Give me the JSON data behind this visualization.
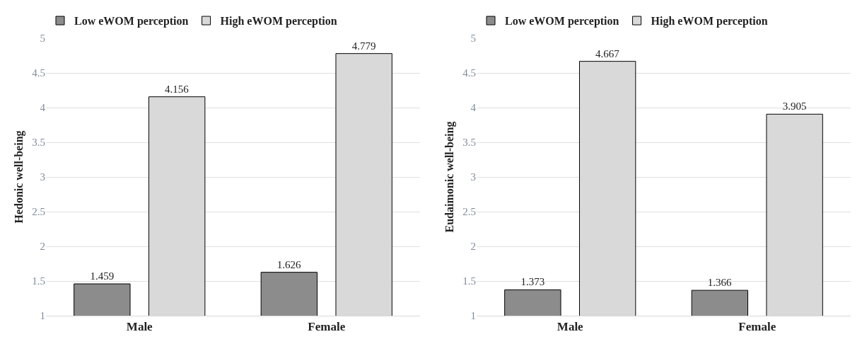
{
  "chart_data": [
    {
      "type": "bar",
      "ylabel": "Hedonic well-being",
      "categories": [
        "Male",
        "Female"
      ],
      "series": [
        {
          "name": "Low eWOM perception",
          "color": "#8c8c8c",
          "values": [
            1.459,
            1.626
          ]
        },
        {
          "name": "High eWOM perception",
          "color": "#d9d9d9",
          "values": [
            4.156,
            4.779
          ]
        }
      ],
      "ylim": [
        1,
        5
      ],
      "yticks": [
        1,
        1.5,
        2,
        2.5,
        3,
        3.5,
        4,
        4.5,
        5
      ],
      "grid": "y",
      "legend": "top",
      "data_labels": true
    },
    {
      "type": "bar",
      "ylabel": "Eudaimonic well-being",
      "categories": [
        "Male",
        "Female"
      ],
      "series": [
        {
          "name": "Low eWOM perception",
          "color": "#8c8c8c",
          "values": [
            1.373,
            1.366
          ]
        },
        {
          "name": "High eWOM perception",
          "color": "#d9d9d9",
          "values": [
            4.667,
            3.905
          ]
        }
      ],
      "ylim": [
        1,
        5
      ],
      "yticks": [
        1,
        1.5,
        2,
        2.5,
        3,
        3.5,
        4,
        4.5,
        5
      ],
      "grid": "y",
      "legend": "top",
      "data_labels": true
    }
  ]
}
